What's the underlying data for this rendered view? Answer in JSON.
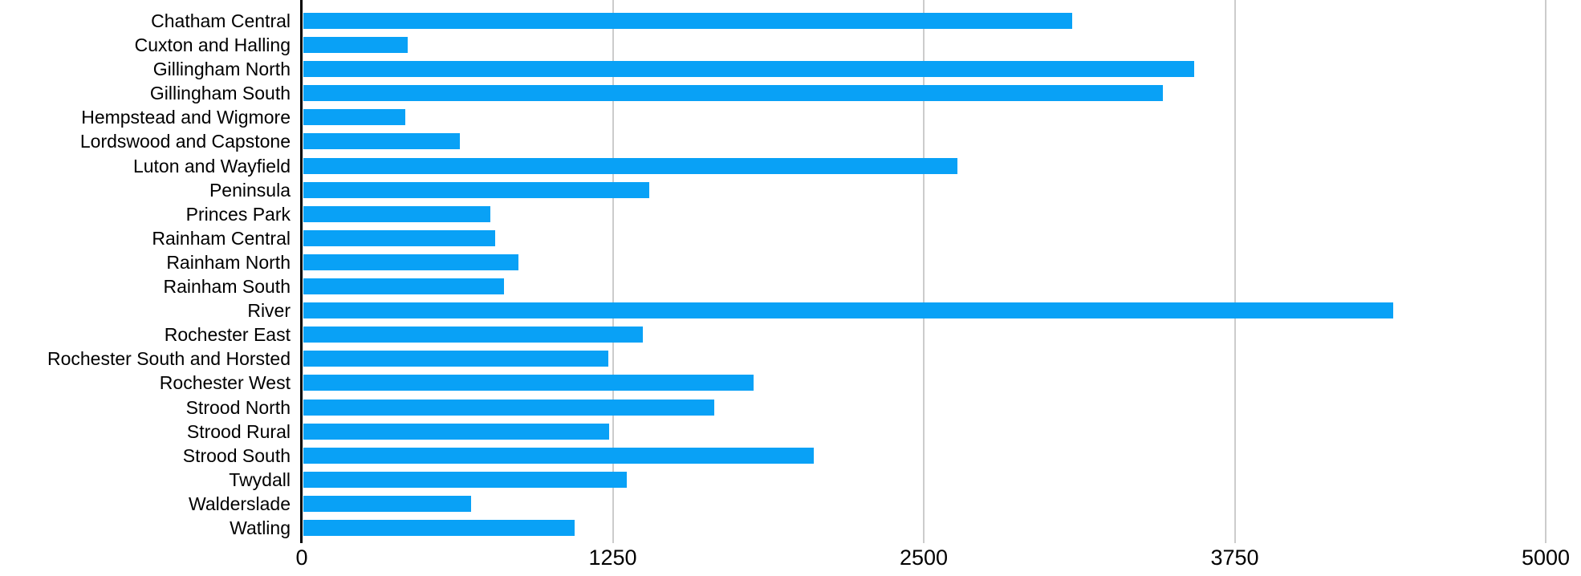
{
  "chart_data": {
    "type": "bar",
    "orientation": "horizontal",
    "title": "",
    "xlabel": "",
    "ylabel": "",
    "categories": [
      "Chatham Central",
      "Cuxton and Halling",
      "Gillingham North",
      "Gillingham South",
      "Hempstead and Wigmore",
      "Lordswood and Capstone",
      "Luton and Wayfield",
      "Peninsula",
      "Princes Park",
      "Rainham Central",
      "Rainham North",
      "Rainham South",
      "River",
      "Rochester East",
      "Rochester South and Horsted",
      "Rochester West",
      "Strood North",
      "Strood Rural",
      "Strood South",
      "Twydall",
      "Walderslade",
      "Watling"
    ],
    "values": [
      3090,
      420,
      3580,
      3455,
      410,
      630,
      2630,
      1390,
      750,
      770,
      865,
      805,
      4380,
      1365,
      1225,
      1810,
      1650,
      1230,
      2050,
      1300,
      675,
      1090
    ],
    "xlim": [
      0,
      5000
    ],
    "x_ticks": [
      0,
      1250,
      2500,
      3750,
      5000
    ],
    "x_tick_labels": [
      "0",
      "1250",
      "2500",
      "3750",
      "5000"
    ],
    "grid": true,
    "legend_position": "none",
    "colors": {
      "bar": "#09A1F6",
      "gridline": "#CCCCCC",
      "axis_line": "#000000",
      "label_text": "#000000",
      "tick_text": "#000000",
      "background": "#FFFFFF"
    }
  }
}
